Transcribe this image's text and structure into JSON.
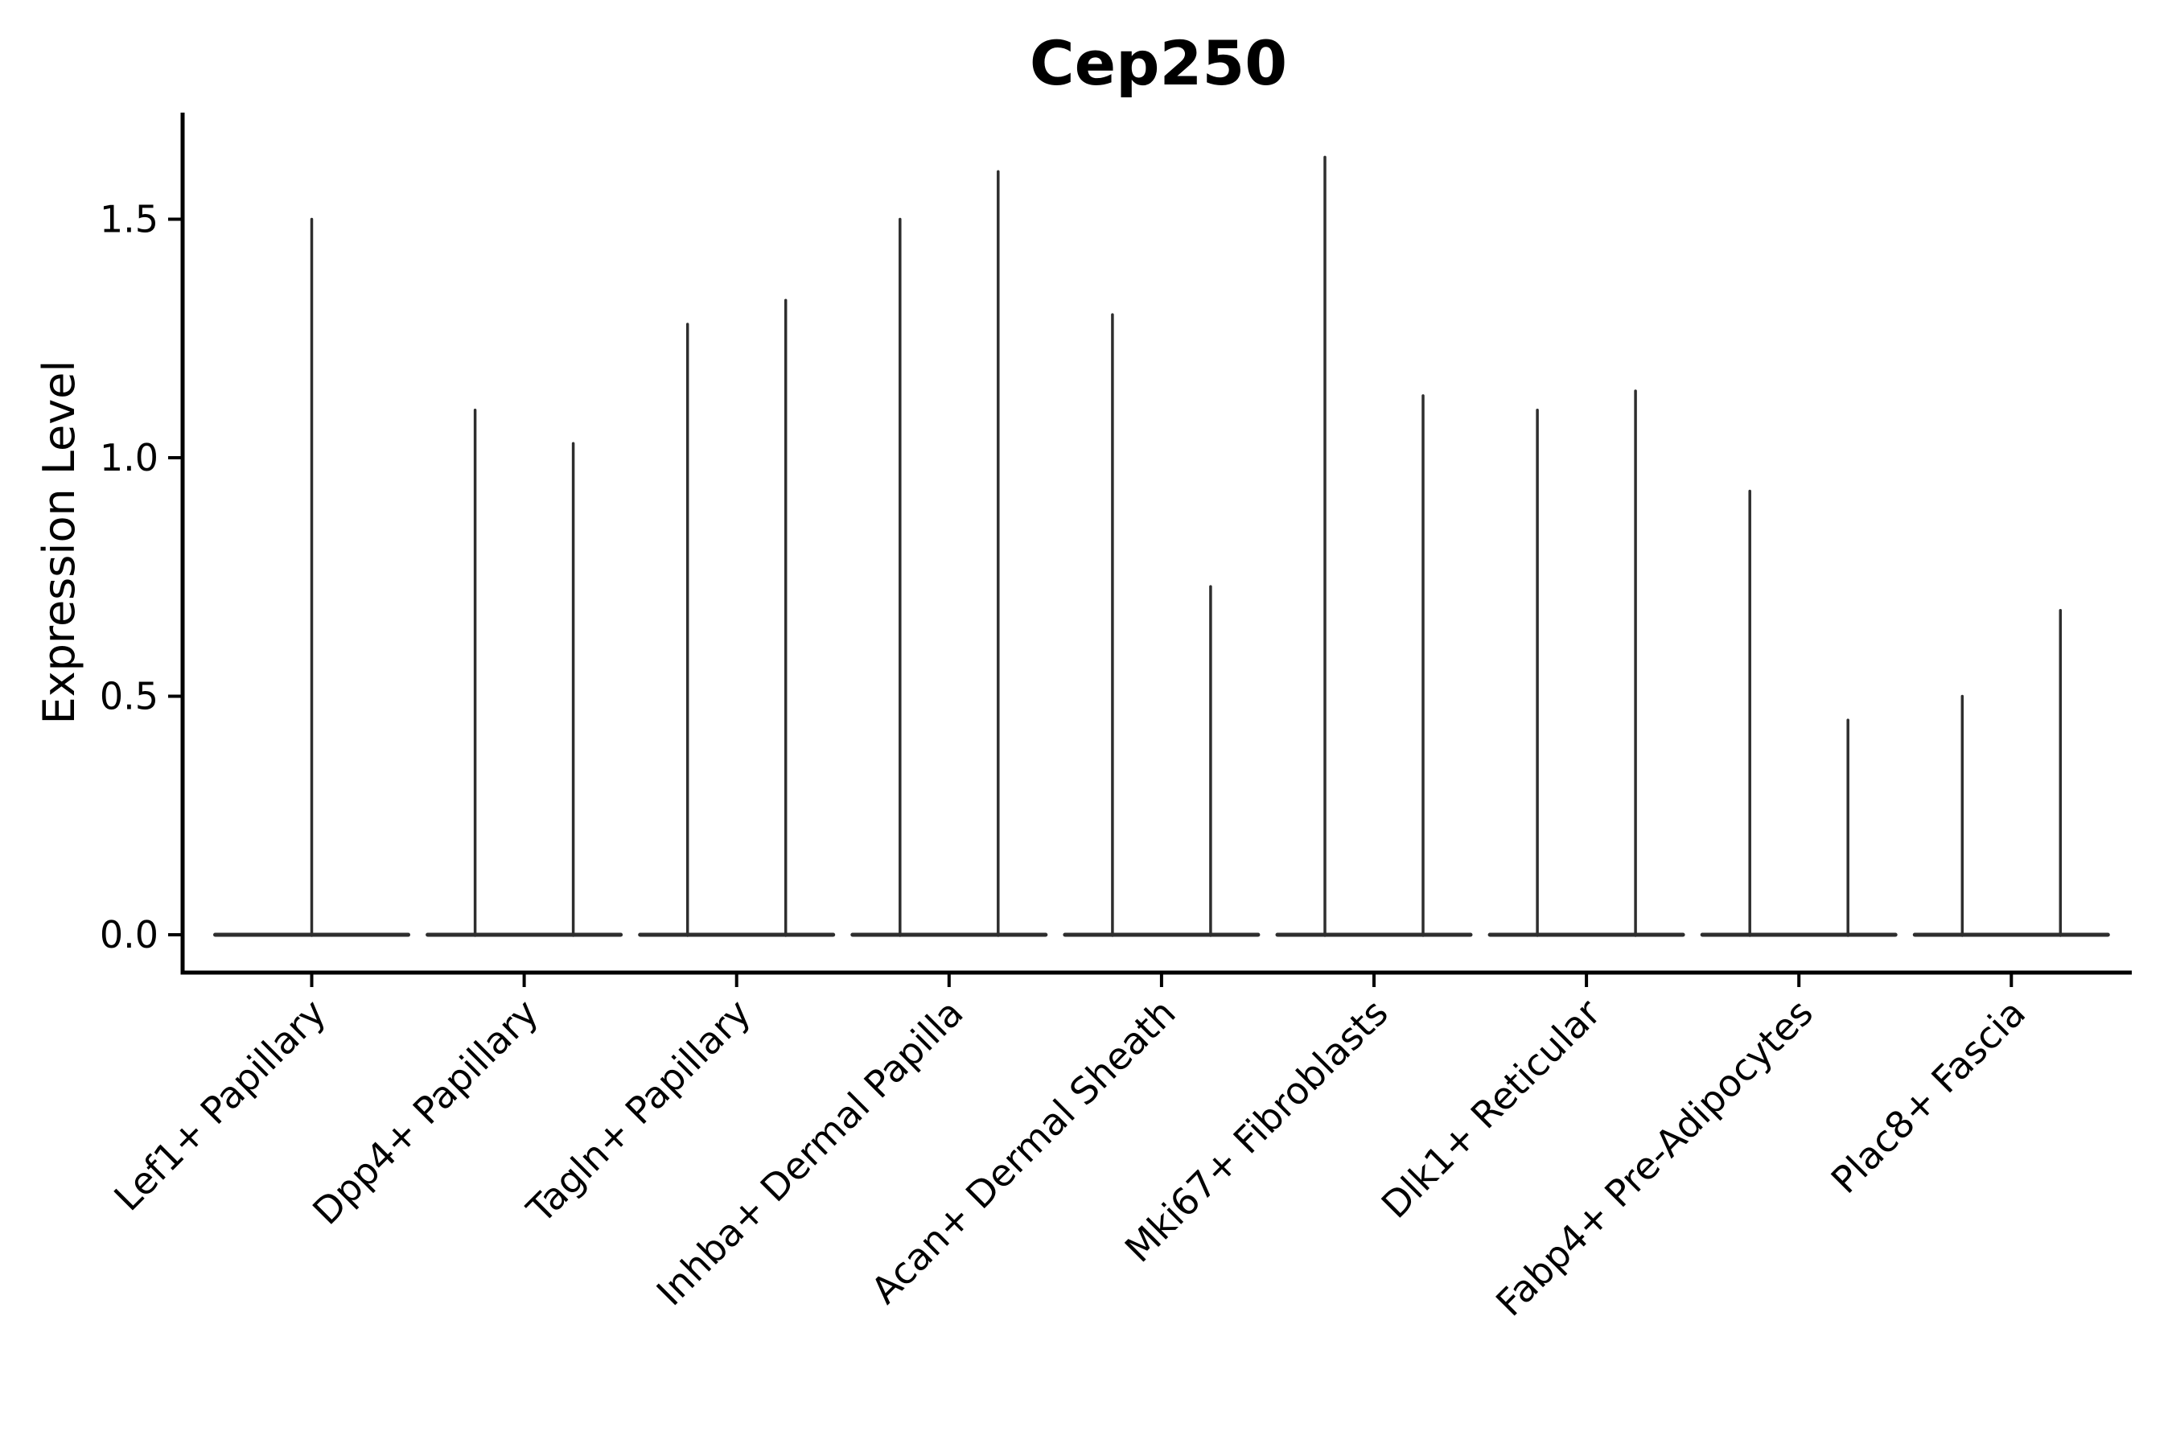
{
  "title": "Cep250",
  "chart_data": {
    "type": "violin",
    "title": "Cep250",
    "xlabel": "",
    "ylabel": "Expression Level",
    "ytick_labels": [
      "0.0",
      "0.5",
      "1.0",
      "1.5"
    ],
    "ytick_values": [
      0.0,
      0.5,
      1.0,
      1.5
    ],
    "ylim": [
      -0.08,
      1.72
    ],
    "grid": false,
    "legend": "none",
    "x_tick_rotation_deg": 45,
    "categories": [
      "Lef1+ Papillary",
      "Dpp4+ Papillary",
      "Tagln+ Papillary",
      "Inhba+ Dermal Papilla",
      "Acan+ Dermal Sheath",
      "Mki67+ Fibroblasts",
      "Dlk1+ Reticular",
      "Fabp4+ Pre-Adipocytes",
      "Plac8+ Fascia"
    ],
    "groups": [
      {
        "label": "Lef1+ Papillary",
        "violins": [
          {
            "position": "center",
            "min": 0.0,
            "max": 1.5
          }
        ]
      },
      {
        "label": "Dpp4+ Papillary",
        "violins": [
          {
            "position": "left",
            "min": 0.0,
            "max": 1.1
          },
          {
            "position": "right",
            "min": 0.0,
            "max": 1.03
          }
        ]
      },
      {
        "label": "Tagln+ Papillary",
        "violins": [
          {
            "position": "left",
            "min": 0.0,
            "max": 1.28
          },
          {
            "position": "right",
            "min": 0.0,
            "max": 1.33
          }
        ]
      },
      {
        "label": "Inhba+ Dermal Papilla",
        "violins": [
          {
            "position": "left",
            "min": 0.0,
            "max": 1.5
          },
          {
            "position": "right",
            "min": 0.0,
            "max": 1.6
          }
        ]
      },
      {
        "label": "Acan+ Dermal Sheath",
        "violins": [
          {
            "position": "left",
            "min": 0.0,
            "max": 1.3
          },
          {
            "position": "right",
            "min": 0.0,
            "max": 0.73
          }
        ]
      },
      {
        "label": "Mki67+ Fibroblasts",
        "violins": [
          {
            "position": "left",
            "min": 0.0,
            "max": 1.63
          },
          {
            "position": "right",
            "min": 0.0,
            "max": 1.13
          }
        ]
      },
      {
        "label": "Dlk1+ Reticular",
        "violins": [
          {
            "position": "left",
            "min": 0.0,
            "max": 1.1
          },
          {
            "position": "right",
            "min": 0.0,
            "max": 1.14
          }
        ]
      },
      {
        "label": "Fabp4+ Pre-Adipocytes",
        "violins": [
          {
            "position": "left",
            "min": 0.0,
            "max": 0.93
          },
          {
            "position": "right",
            "min": 0.0,
            "max": 0.45
          }
        ]
      },
      {
        "label": "Plac8+ Fascia",
        "violins": [
          {
            "position": "left",
            "min": 0.0,
            "max": 0.5
          },
          {
            "position": "right",
            "min": 0.0,
            "max": 0.68
          }
        ]
      }
    ],
    "colors": {
      "violin": "#2e2e2e",
      "axis": "#000000",
      "text": "#000000",
      "background": "#ffffff"
    }
  }
}
